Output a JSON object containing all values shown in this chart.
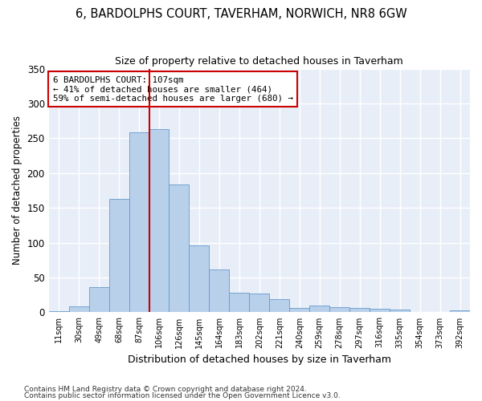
{
  "title": "6, BARDOLPHS COURT, TAVERHAM, NORWICH, NR8 6GW",
  "subtitle": "Size of property relative to detached houses in Taverham",
  "xlabel": "Distribution of detached houses by size in Taverham",
  "ylabel": "Number of detached properties",
  "categories": [
    "11sqm",
    "30sqm",
    "49sqm",
    "68sqm",
    "87sqm",
    "106sqm",
    "126sqm",
    "145sqm",
    "164sqm",
    "183sqm",
    "202sqm",
    "221sqm",
    "240sqm",
    "259sqm",
    "278sqm",
    "297sqm",
    "316sqm",
    "335sqm",
    "354sqm",
    "373sqm",
    "392sqm"
  ],
  "values": [
    2,
    9,
    36,
    163,
    258,
    263,
    184,
    96,
    62,
    28,
    27,
    19,
    6,
    10,
    7,
    6,
    5,
    4,
    1,
    1,
    3
  ],
  "bar_color": "#b8d0ea",
  "bar_edge_color": "#6699cc",
  "vline_index": 5,
  "vline_color": "#cc0000",
  "annotation_title": "6 BARDOLPHS COURT: 107sqm",
  "annotation_line1": "← 41% of detached houses are smaller (464)",
  "annotation_line2": "59% of semi-detached houses are larger (680) →",
  "ylim": [
    0,
    350
  ],
  "yticks": [
    0,
    50,
    100,
    150,
    200,
    250,
    300,
    350
  ],
  "plot_bg_color": "#e8eef8",
  "fig_bg_color": "#ffffff",
  "grid_color": "#ffffff",
  "footnote1": "Contains HM Land Registry data © Crown copyright and database right 2024.",
  "footnote2": "Contains public sector information licensed under the Open Government Licence v3.0."
}
